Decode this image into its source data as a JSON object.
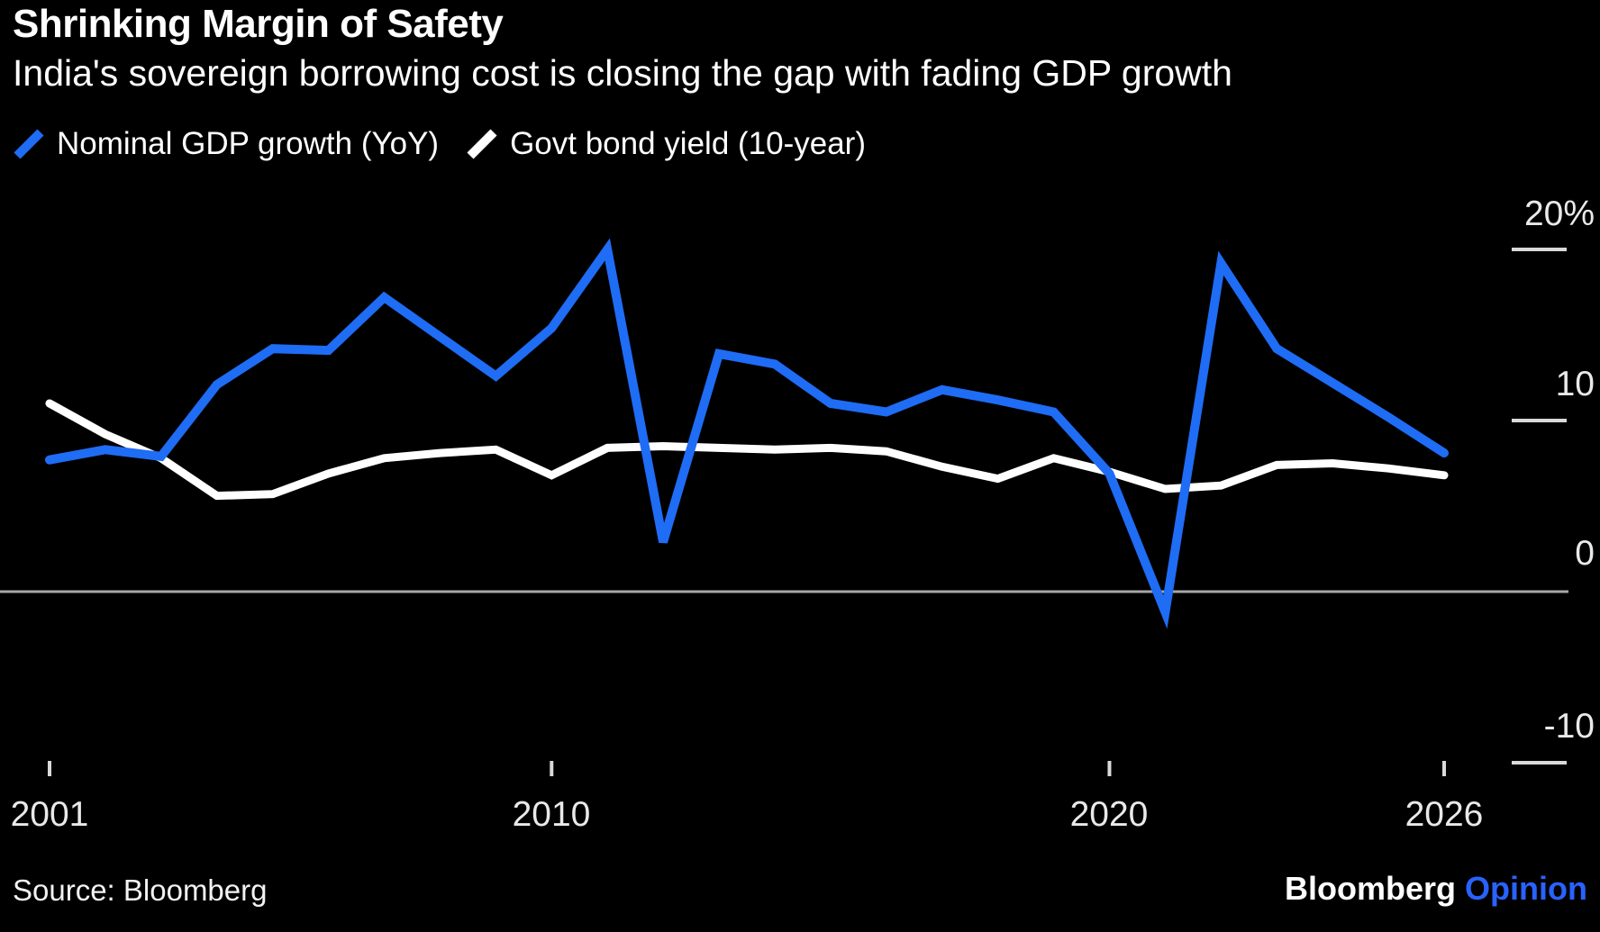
{
  "header": {
    "title": "Shrinking Margin of Safety",
    "subtitle": "India's sovereign borrowing cost is closing the gap with fading GDP growth"
  },
  "colors": {
    "background": "#000000",
    "gdp_line_blue": "#1f6cf5",
    "yield_line_white": "#ffffff",
    "zero_axis_gray": "#a6a6a6",
    "tick_gray": "#d9d9d9",
    "opinion_blue": "#2962ff"
  },
  "legend": [
    {
      "label": "Nominal GDP growth (YoY)",
      "color": "#1f6cf5"
    },
    {
      "label": "Govt bond yield (10-year)",
      "color": "#ffffff"
    }
  ],
  "chart_data": {
    "type": "line",
    "title": "Shrinking Margin of Safety",
    "subtitle": "India's sovereign borrowing cost is closing the gap with fading GDP growth",
    "unit": "percent",
    "grid": "off",
    "legend_position": "top-left",
    "axis_side": "right",
    "ylim": [
      -13,
      22
    ],
    "baseline": 0,
    "x": [
      2001,
      2002,
      2003,
      2004,
      2005,
      2006,
      2007,
      2008,
      2009,
      2010,
      2011,
      2012,
      2013,
      2014,
      2015,
      2016,
      2017,
      2018,
      2019,
      2020,
      2021,
      2022,
      2023,
      2024,
      2025,
      2026
    ],
    "series": [
      {
        "name": "Nominal GDP growth (YoY)",
        "color": "#1f6cf5",
        "values": [
          7.7,
          8.3,
          7.9,
          12.1,
          14.2,
          14.1,
          17.2,
          14.9,
          12.6,
          15.4,
          20.0,
          2.9,
          13.9,
          13.3,
          11.0,
          10.5,
          11.8,
          11.2,
          10.5,
          6.9,
          -1.2,
          19.2,
          14.2,
          12.2,
          10.2,
          8.1
        ]
      },
      {
        "name": "Govt bond yield (10-year)",
        "color": "#ffffff",
        "values": [
          11.0,
          9.2,
          7.8,
          5.6,
          5.7,
          6.9,
          7.8,
          8.1,
          8.3,
          6.8,
          8.4,
          8.5,
          8.4,
          8.3,
          8.4,
          8.2,
          7.3,
          6.6,
          7.8,
          7.0,
          6.0,
          6.2,
          7.4,
          7.5,
          7.2,
          6.8
        ]
      }
    ],
    "y_ticks": [
      {
        "value": 20,
        "label": "20%"
      },
      {
        "value": 10,
        "label": "10"
      },
      {
        "value": 0,
        "label": "0"
      },
      {
        "value": -10,
        "label": "-10"
      }
    ],
    "x_ticks": [
      {
        "year": 2001,
        "label": "2001"
      },
      {
        "year": 2010,
        "label": "2010"
      },
      {
        "year": 2020,
        "label": "2020"
      },
      {
        "year": 2026,
        "label": "2026"
      }
    ]
  },
  "footer": {
    "source": "Source: Bloomberg",
    "brand": "Bloomberg",
    "brand_suffix": "Opinion"
  }
}
